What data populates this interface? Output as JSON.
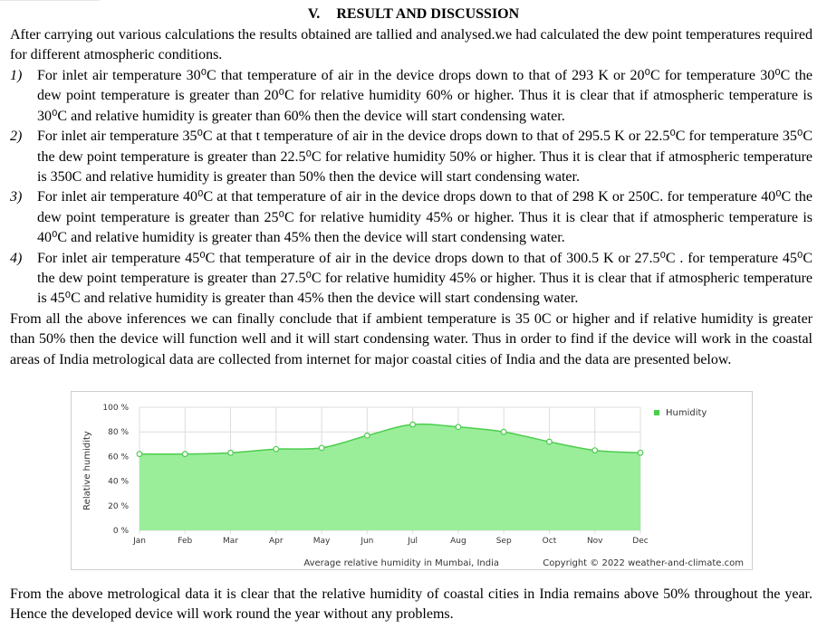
{
  "heading": {
    "number": "V.",
    "title": "RESULT AND DISCUSSION"
  },
  "intro": "After carrying out various calculations the results obtained are tallied and analysed.we had calculated the dew point temperatures required for different atmospheric conditions.",
  "items": [
    {
      "num": "1)",
      "text": "For inlet air temperature 30⁰C that temperature of air in the device drops down to that of 293 K or 20⁰C for temperature 30⁰C the dew point temperature is greater than 20⁰C for relative humidity 60% or higher. Thus it is clear that if atmospheric temperature is 30⁰C and relative humidity is greater than 60% then the device will start condensing water."
    },
    {
      "num": "2)",
      "text": "For inlet air temperature 35⁰C at that t temperature of air in the device drops down to that of 295.5 K or 22.5⁰C for temperature 35⁰C the dew point temperature is greater than 22.5⁰C for relative humidity 50% or higher. Thus it is clear that if atmospheric temperature is 350C and relative humidity is greater than 50% then the device will start condensing water."
    },
    {
      "num": "3)",
      "text": "For inlet air temperature 40⁰C at that temperature of air in the device drops down to that of 298 K or 250C. for temperature 40⁰C the dew point temperature is greater than 25⁰C for relative humidity 45% or higher. Thus it is clear that if atmospheric temperature is 40⁰C and relative humidity is greater than 45% then the device will start condensing water."
    },
    {
      "num": "4)",
      "text": "For inlet air temperature 45⁰C that temperature of air in the device drops down to that of 300.5 K or 27.5⁰C . for temperature 45⁰C the dew point temperature is greater than 27.5⁰C for relative humidity 45% or higher. Thus it is clear that if atmospheric temperature is 45⁰C and relative humidity is greater than 45% then the device will start condensing water."
    }
  ],
  "conclusion": "From all the above inferences we can finally conclude that if ambient temperature is 35 0C or higher and if relative humidity is greater than 50% then the device will function well and it will start condensing water. Thus in order to find if the device will work in the coastal areas of India metrological data are collected from internet for major coastal cities of India and the data are presented below.",
  "chart_data": {
    "type": "area",
    "categories": [
      "Jan",
      "Feb",
      "Mar",
      "Apr",
      "May",
      "Jun",
      "Jul",
      "Aug",
      "Sep",
      "Oct",
      "Nov",
      "Dec"
    ],
    "series": [
      {
        "name": "Humidity",
        "values": [
          62,
          62,
          63,
          66,
          67,
          77,
          86,
          84,
          80,
          72,
          65,
          63
        ],
        "color": "#4ccd4c",
        "fill": "#9aee9a"
      }
    ],
    "ylabel": "Relative humidity",
    "yticks": [
      "0 %",
      "20 %",
      "40 %",
      "60 %",
      "80 %",
      "100 %"
    ],
    "ylim": [
      0,
      100
    ],
    "caption": "Average relative humidity in Mumbai, India",
    "copyright": "Copyright © 2022 weather-and-climate.com",
    "legend_position": "top-right",
    "grid": true
  },
  "final": "From the above metrological data it is clear that the relative humidity of coastal cities in India remains above 50% throughout the year. Hence the developed device will work round the year without any problems."
}
